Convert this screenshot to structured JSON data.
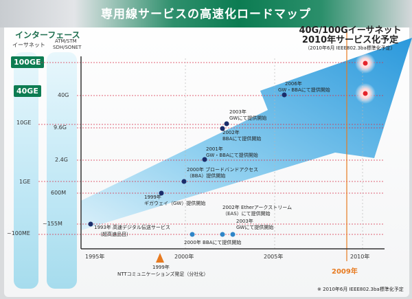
{
  "title": "専用線サービスの高速化ロードマップ",
  "left_panel": {
    "heading": "インターフェース",
    "ethernet_label": "イーサネット",
    "atm_label_line1": "ATM/STM",
    "atm_label_line2": "SDH/SONET",
    "ethernet_speeds": [
      "100GE",
      "40GE",
      "10GE",
      "1GE",
      "~100ME"
    ],
    "atm_speeds": [
      "40G",
      "9.6G",
      "2.4G",
      "600M",
      "~155M"
    ]
  },
  "x_axis": {
    "ticks": [
      "1995年",
      "2000年",
      "2005年",
      "2010年"
    ],
    "highlight_year": "2009年"
  },
  "milestones": {
    "m1993_line1": "1993年 高速デジタル伝送サービス",
    "m1993_line2": "（超高速品目）",
    "m1999_line1": "1999年",
    "m1999_line2": "ギガウェイ（GW）提供開始",
    "m2000bba_line1": "2000年 ブロードバンドアクセス",
    "m2000bba_line2": "（BBA）提供開始",
    "m2000b": "2000年 BBAにて提供開始",
    "m2001_line1": "2001年",
    "m2001_line2": "GW・BBAにて提供開始",
    "m2002_line1": "2002年",
    "m2002_line2": "BBAにて提供開始",
    "m2003_line1": "2003年",
    "m2003_line2": "GWにて提供開始",
    "m2006_line1": "2006年",
    "m2006_line2": "GW・BBAにて提供開始",
    "eas_line1": "2002年 Etherアークストリーム",
    "eas_line2": "（EAS）にて提供開始",
    "m2003b_line1": "2003年",
    "m2003b_line2": "GWにて提供開始"
  },
  "target": {
    "line1": "40G/100Gイーサネット",
    "line2": "2010年サービス化予定",
    "line3": "（2010年6月 IEEE802.3ba標準化予定）"
  },
  "bottom_note_line1": "1999年",
  "bottom_note_line2": "NTTコミュニケーションズ発足（分社化）",
  "footnote": "※ 2010年6月 IEEE802.3ba標準化予定",
  "colors": {
    "title_green": "#0c7c52",
    "arrow_blue": "#2f9fe0",
    "dot_dark": "#1b2d6b",
    "dot_mid": "#2f86c8",
    "highlight_orange": "#e77a20",
    "target_red": "#e5252b"
  },
  "icons": [
    "triangle-up-icon"
  ]
}
